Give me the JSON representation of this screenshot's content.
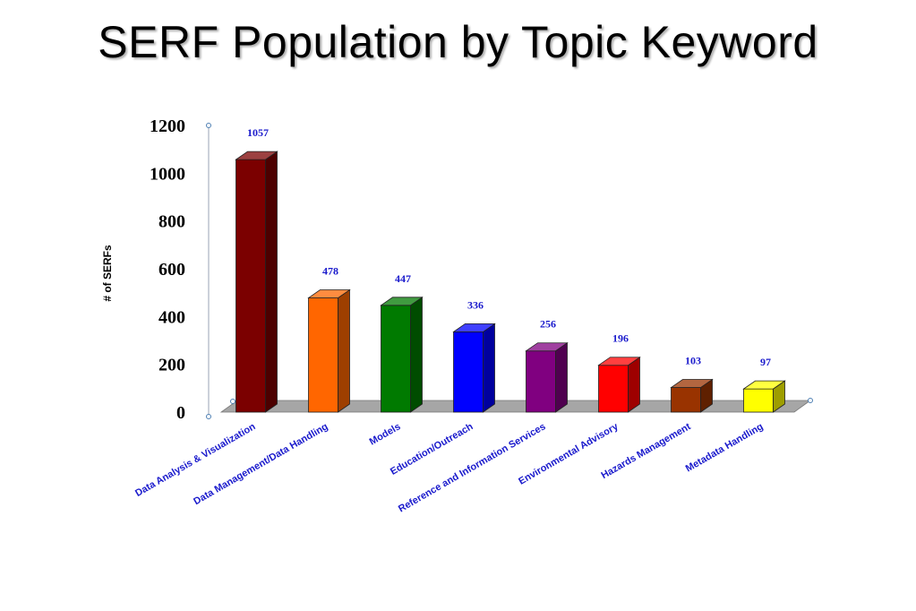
{
  "title": "SERF Population by Topic Keyword",
  "chart_data": {
    "type": "bar",
    "categories": [
      "Data Analysis & Visualization",
      "Data Management/Data Handling",
      "Models",
      "Education/Outreach",
      "Reference and Information Services",
      "Environmental Advisory",
      "Hazards Management",
      "Metadata Handling"
    ],
    "values": [
      1057,
      478,
      447,
      336,
      256,
      196,
      103,
      97
    ],
    "data_labels": [
      "1057",
      "478",
      "447",
      "336",
      "256",
      "196",
      "103",
      "97"
    ],
    "yticks": [
      "0",
      "200",
      "400",
      "600",
      "800",
      "1000",
      "1200"
    ],
    "ylabel": "# of SERFs",
    "ylim": [
      0,
      1200
    ],
    "grid": false,
    "legend": "none",
    "colors": [
      "#7b0000",
      "#ff6600",
      "#007a00",
      "#0000ff",
      "#800080",
      "#ff0000",
      "#993300",
      "#ffff00"
    ],
    "floor_color": "#a6a6a6"
  }
}
